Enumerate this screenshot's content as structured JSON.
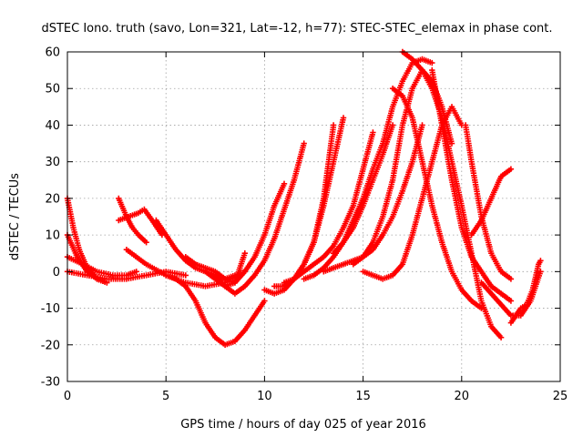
{
  "chart_data": {
    "type": "scatter",
    "title": "dSTEC Iono. truth (savo, Lon=321, Lat=-12, h=77): STEC-STEC_elemax in phase cont.",
    "xlabel": "GPS time / hours of day 025 of year 2016",
    "ylabel": "dSTEC  / TECUs",
    "xlim": [
      0,
      25
    ],
    "ylim": [
      -30,
      60
    ],
    "xticks": [
      0,
      5,
      10,
      15,
      20,
      25
    ],
    "yticks": [
      -30,
      -20,
      -10,
      0,
      10,
      20,
      30,
      40,
      50,
      60
    ],
    "grid": true,
    "marker": "plus",
    "color": "#ff0000",
    "series": [
      {
        "x": [
          0,
          0.3,
          0.6,
          1.0,
          1.5,
          2.0
        ],
        "y": [
          20,
          12,
          6,
          1,
          -2,
          -3
        ]
      },
      {
        "x": [
          0,
          0.5,
          1.0,
          1.5,
          2.0
        ],
        "y": [
          10,
          4,
          0,
          -2,
          -3
        ]
      },
      {
        "x": [
          0,
          0.8,
          1.5,
          2.3,
          3.0,
          3.5
        ],
        "y": [
          4,
          2,
          0,
          -1,
          -1,
          0
        ]
      },
      {
        "x": [
          0,
          1.0,
          2.0,
          3.0,
          4.0,
          5.0,
          6.0
        ],
        "y": [
          0,
          -1,
          -2,
          -2,
          -1,
          0,
          -1
        ]
      },
      {
        "x": [
          2.6,
          3.0,
          3.3,
          3.6,
          4.0
        ],
        "y": [
          20,
          15,
          12,
          10,
          8
        ]
      },
      {
        "x": [
          2.6,
          3.1,
          3.6,
          3.9,
          4.3,
          4.8
        ],
        "y": [
          14,
          15,
          16,
          17,
          14,
          10
        ]
      },
      {
        "x": [
          3.0,
          4.0,
          5.0,
          6.0,
          7.0,
          8.0,
          9.0
        ],
        "y": [
          6,
          2,
          -1,
          -3,
          -4,
          -3,
          0
        ]
      },
      {
        "x": [
          4.5,
          5.0,
          5.5,
          6.0,
          6.5,
          7.0,
          7.5,
          8.0,
          8.5
        ],
        "y": [
          14,
          10,
          6,
          3,
          1,
          0,
          -1,
          -2,
          -1
        ]
      },
      {
        "x": [
          5.0,
          5.5,
          6.0,
          6.5,
          7.0,
          7.5,
          8.0,
          8.5,
          9.0,
          9.5,
          10.0
        ],
        "y": [
          -1,
          -2,
          -4,
          -8,
          -14,
          -18,
          -20,
          -19,
          -16,
          -12,
          -8
        ]
      },
      {
        "x": [
          6.0,
          6.5,
          7.0,
          7.5,
          8.0,
          8.5,
          9.0
        ],
        "y": [
          4,
          2,
          1,
          0,
          -2,
          -3,
          5
        ]
      },
      {
        "x": [
          7.0,
          7.5,
          8.0,
          8.5,
          9.0,
          9.5,
          10.0,
          10.5,
          11.0
        ],
        "y": [
          0,
          -2,
          -4,
          -3,
          0,
          4,
          10,
          18,
          24
        ]
      },
      {
        "x": [
          7.5,
          8.0,
          8.5,
          9.0,
          9.5,
          10.0,
          10.5,
          11.0,
          11.5,
          12.0
        ],
        "y": [
          -1,
          -4,
          -6,
          -4,
          -1,
          3,
          9,
          17,
          25,
          35
        ]
      },
      {
        "x": [
          10.0,
          10.5,
          11.0,
          11.5,
          12.0,
          12.5,
          13.0,
          13.5
        ],
        "y": [
          -5,
          -6,
          -5,
          -2,
          2,
          8,
          20,
          40
        ]
      },
      {
        "x": [
          10.5,
          11.0,
          11.5,
          12.0,
          12.5,
          13.0,
          13.5,
          14.0
        ],
        "y": [
          -4,
          -4,
          -2,
          2,
          8,
          18,
          30,
          42
        ]
      },
      {
        "x": [
          11.0,
          11.5,
          12.0,
          12.5,
          13.0,
          13.5,
          14.0,
          14.5,
          15.0,
          15.5
        ],
        "y": [
          -3,
          -2,
          0,
          2,
          4,
          7,
          12,
          18,
          28,
          38
        ]
      },
      {
        "x": [
          12.0,
          12.5,
          13.0,
          13.5,
          14.0,
          14.5,
          15.0,
          15.5,
          16.0,
          16.5
        ],
        "y": [
          -2,
          -1,
          1,
          4,
          8,
          12,
          18,
          25,
          32,
          40
        ]
      },
      {
        "x": [
          13.0,
          13.5,
          14.0,
          14.5,
          15.0,
          15.5,
          16.0,
          16.5,
          17.0,
          17.5,
          18.0
        ],
        "y": [
          0,
          1,
          2,
          3,
          4,
          6,
          10,
          15,
          22,
          30,
          40
        ]
      },
      {
        "x": [
          13.5,
          14.0,
          14.5,
          15.0,
          15.5,
          16.0,
          16.5,
          17.0,
          17.5,
          18.0,
          18.5
        ],
        "y": [
          5,
          8,
          14,
          20,
          28,
          35,
          45,
          52,
          57,
          58,
          57
        ]
      },
      {
        "x": [
          14.5,
          15.0,
          15.5,
          16.0,
          16.5,
          17.0,
          17.5,
          18.0,
          18.5,
          19.0,
          19.5
        ],
        "y": [
          2,
          4,
          8,
          15,
          25,
          40,
          50,
          55,
          52,
          45,
          35
        ]
      },
      {
        "x": [
          15.0,
          15.5,
          16.0,
          16.5,
          17.0,
          17.5,
          18.0,
          18.5,
          19.0,
          19.5,
          20.0
        ],
        "y": [
          0,
          -1,
          -2,
          -1,
          2,
          10,
          20,
          30,
          40,
          45,
          40
        ]
      },
      {
        "x": [
          17.0,
          17.5,
          18.0,
          18.5,
          19.0,
          19.5,
          20.0,
          20.5,
          21.0,
          21.5,
          22.0
        ],
        "y": [
          60,
          58,
          55,
          50,
          42,
          30,
          18,
          5,
          -8,
          -15,
          -18
        ]
      },
      {
        "x": [
          16.5,
          17.0,
          17.5,
          18.0,
          18.5,
          19.0,
          19.5,
          20.0,
          20.5,
          21.0
        ],
        "y": [
          50,
          48,
          42,
          30,
          18,
          8,
          0,
          -5,
          -8,
          -10
        ]
      },
      {
        "x": [
          18.5,
          19.0,
          19.5,
          20.0,
          20.5,
          21.0,
          21.5,
          22.0,
          22.5
        ],
        "y": [
          55,
          40,
          25,
          12,
          4,
          0,
          -4,
          -6,
          -8
        ]
      },
      {
        "x": [
          20.2,
          20.5,
          21.0,
          21.5,
          22.0,
          22.5
        ],
        "y": [
          40,
          30,
          15,
          5,
          0,
          -2
        ]
      },
      {
        "x": [
          20.5,
          21.0,
          21.5,
          22.0,
          22.5
        ],
        "y": [
          10,
          14,
          20,
          26,
          28
        ]
      },
      {
        "x": [
          21.0,
          21.5,
          22.0,
          22.5,
          23.0,
          23.5,
          24.0
        ],
        "y": [
          -3,
          -6,
          -9,
          -12,
          -12,
          -8,
          0
        ]
      },
      {
        "x": [
          22.5,
          23.0,
          23.3,
          23.6,
          23.9,
          24.0
        ],
        "y": [
          -14,
          -10,
          -9,
          -5,
          2,
          3
        ]
      }
    ]
  }
}
